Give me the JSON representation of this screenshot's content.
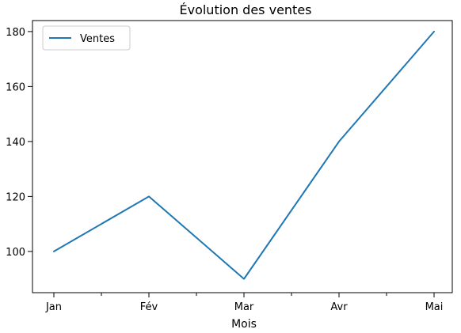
{
  "chart_data": {
    "type": "line",
    "title": "Évolution des ventes",
    "xlabel": "Mois",
    "ylabel": "",
    "categories": [
      "Jan",
      "Fév",
      "Mar",
      "Avr",
      "Mai"
    ],
    "series": [
      {
        "name": "Ventes",
        "values": [
          100,
          120,
          90,
          140,
          180
        ],
        "color": "#1f77b4"
      }
    ],
    "ylim": [
      85,
      184
    ],
    "yticks": [
      100,
      120,
      140,
      160,
      180
    ],
    "minor_x_ticks": true,
    "grid": false,
    "legend_position": "top-left"
  }
}
